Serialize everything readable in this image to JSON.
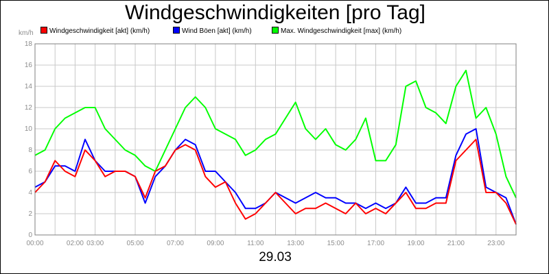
{
  "chart_data": {
    "type": "line",
    "title": "Windgeschwindigkeiten [pro Tag]",
    "date_label": "29.03",
    "unit_label": "km/h",
    "ylim": [
      0,
      18
    ],
    "y_ticks": [
      "0",
      "2",
      "4",
      "6",
      "8",
      "10",
      "12",
      "14",
      "16",
      "18"
    ],
    "xlim": [
      0,
      24
    ],
    "x_ticks": [
      {
        "hour": 0,
        "label": "00:00"
      },
      {
        "hour": 2,
        "label": "02:00"
      },
      {
        "hour": 3,
        "label": "03:00"
      },
      {
        "hour": 5,
        "label": "05:00"
      },
      {
        "hour": 7,
        "label": "07:00"
      },
      {
        "hour": 9,
        "label": "09:00"
      },
      {
        "hour": 11,
        "label": "11:00"
      },
      {
        "hour": 13,
        "label": "13:00"
      },
      {
        "hour": 15,
        "label": "15:00"
      },
      {
        "hour": 17,
        "label": "17:00"
      },
      {
        "hour": 19,
        "label": "19:00"
      },
      {
        "hour": 21,
        "label": "21:00"
      },
      {
        "hour": 23,
        "label": "23:00"
      }
    ],
    "grid": true,
    "legend_position": "top",
    "x": [
      0,
      0.5,
      1,
      1.5,
      2,
      2.5,
      3,
      3.5,
      4,
      4.5,
      5,
      5.5,
      6,
      6.5,
      7,
      7.5,
      8,
      8.5,
      9,
      9.5,
      10,
      10.5,
      11,
      11.5,
      12,
      12.5,
      13,
      13.5,
      14,
      14.5,
      15,
      15.5,
      16,
      16.5,
      17,
      17.5,
      18,
      18.5,
      19,
      19.5,
      20,
      20.5,
      21,
      21.5,
      22,
      22.5,
      23,
      23.5,
      24
    ],
    "series": [
      {
        "name": "Windgeschwindigkeit [akt] (km/h)",
        "color": "#ff0000",
        "values": [
          4,
          5,
          7,
          6,
          5.5,
          8,
          7,
          5.5,
          6,
          6,
          5.5,
          3.5,
          6,
          6.5,
          8,
          8.5,
          8,
          5.5,
          4.5,
          5,
          3,
          1.5,
          2,
          3,
          4,
          3,
          2,
          2.5,
          2.5,
          3,
          2.5,
          2,
          3,
          2,
          2.5,
          2,
          3,
          4,
          2.5,
          2.5,
          3,
          3,
          7,
          8,
          9,
          4,
          4,
          3,
          1
        ]
      },
      {
        "name": "Wind Böen [akt] (km/h)",
        "color": "#0000ff",
        "values": [
          4.5,
          5,
          6.5,
          6.5,
          6,
          9,
          7,
          6,
          6,
          6,
          5.5,
          3,
          5.5,
          6.5,
          8,
          9,
          8.5,
          6,
          6,
          5,
          4,
          2.5,
          2.5,
          3,
          4,
          3.5,
          3,
          3.5,
          4,
          3.5,
          3.5,
          3,
          3,
          2.5,
          3,
          2.5,
          3,
          4.5,
          3,
          3,
          3.5,
          3.5,
          7.5,
          9.5,
          10,
          4.5,
          4,
          3.5,
          1
        ]
      },
      {
        "name": "Max. Windgeschwindigkeit [max] (km/h)",
        "color": "#00ff00",
        "values": [
          7.5,
          8,
          10,
          11,
          11.5,
          12,
          12,
          10,
          9,
          8,
          7.5,
          6.5,
          6,
          8,
          10,
          12,
          13,
          12,
          10,
          9.5,
          9,
          7.5,
          8,
          9,
          9.5,
          11,
          12.5,
          10,
          9,
          10,
          8.5,
          8,
          9,
          11,
          7,
          7,
          8.5,
          14,
          14.5,
          12,
          11.5,
          10.5,
          14,
          15.5,
          11,
          12,
          9.5,
          5.5,
          3.5
        ]
      }
    ]
  }
}
